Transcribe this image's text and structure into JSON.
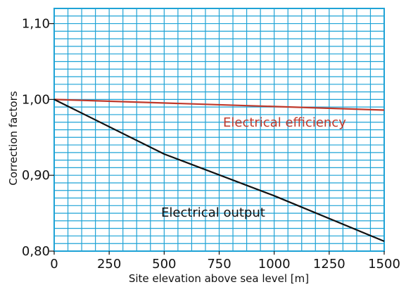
{
  "chart_data": {
    "type": "line",
    "xlabel": "Site elevation above sea level [m]",
    "ylabel": "Correction factors",
    "xlim": [
      0,
      1500
    ],
    "ylim": [
      0.8,
      1.12
    ],
    "x_ticks": [
      0,
      250,
      500,
      750,
      1000,
      1250,
      1500
    ],
    "x_tick_labels": [
      "0",
      "250",
      "500",
      "750",
      "1000",
      "1250",
      "1500"
    ],
    "y_ticks": [
      0.8,
      0.9,
      1.0,
      1.1
    ],
    "y_tick_labels": [
      "0,80",
      "0,90",
      "1,00",
      "1,10"
    ],
    "grid": true,
    "grid_step_x": 62.5,
    "grid_step_y": 0.01,
    "series": [
      {
        "name": "Electrical efficiency",
        "color": "#c0392b",
        "x": [
          0,
          1500
        ],
        "y": [
          1.0,
          0.986
        ]
      },
      {
        "name": "Electrical output",
        "color": "#111111",
        "x": [
          0,
          500,
          1000,
          1500
        ],
        "y": [
          1.0,
          0.928,
          0.873,
          0.813
        ]
      }
    ]
  },
  "colors": {
    "grid": "#1fa3d6",
    "frame": "#1fa3d6"
  }
}
